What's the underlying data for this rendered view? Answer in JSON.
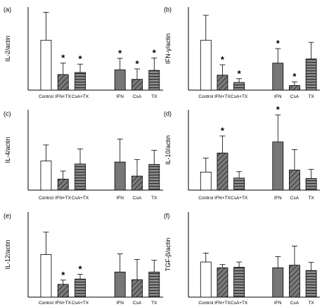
{
  "chart_data": [
    {
      "panel_label": "(a)",
      "type": "bar",
      "ylabel": "IL-2/actin",
      "categories": [
        "Control",
        "IFN+TX",
        "CsA+TX",
        "IFN",
        "CsA",
        "TX"
      ],
      "values": [
        2.4,
        0.75,
        0.85,
        0.98,
        0.52,
        0.95
      ],
      "errors": [
        1.35,
        0.55,
        0.4,
        0.55,
        0.5,
        0.6
      ],
      "significant": [
        false,
        true,
        true,
        true,
        true,
        true
      ],
      "ylim": [
        0,
        4
      ]
    },
    {
      "panel_label": "(b)",
      "type": "bar",
      "ylabel": "IFN-γ/actin",
      "categories": [
        "Control",
        "IFN+TX",
        "CsA+TX",
        "IFN",
        "CsA",
        "TX"
      ],
      "values": [
        2.4,
        0.72,
        0.37,
        1.3,
        0.22,
        1.5
      ],
      "errors": [
        1.2,
        0.5,
        0.18,
        0.7,
        0.18,
        0.8
      ],
      "significant": [
        false,
        true,
        true,
        true,
        true,
        false
      ],
      "ylim": [
        0,
        4
      ]
    },
    {
      "panel_label": "(c)",
      "type": "bar",
      "ylabel": "IL-4/actin",
      "categories": [
        "Control",
        "IFN+TX",
        "CsA+TX",
        "IFN",
        "CsA",
        "TX"
      ],
      "values": [
        1.45,
        0.55,
        1.3,
        1.4,
        0.7,
        1.28
      ],
      "errors": [
        0.8,
        0.4,
        0.75,
        1.15,
        0.82,
        0.7
      ],
      "significant": [
        false,
        false,
        false,
        false,
        false,
        false
      ],
      "ylim": [
        0,
        4
      ]
    },
    {
      "panel_label": "(d)",
      "type": "bar",
      "ylabel": "IL-10/actin",
      "categories": [
        "Control",
        "IFN+TX",
        "CsA+TX",
        "IFN",
        "CsA",
        "TX"
      ],
      "values": [
        0.9,
        1.85,
        0.6,
        2.4,
        1.0,
        0.58
      ],
      "errors": [
        0.7,
        0.85,
        0.32,
        1.35,
        1.02,
        0.45
      ],
      "significant": [
        false,
        true,
        false,
        true,
        false,
        false
      ],
      "ylim": [
        0,
        4
      ]
    },
    {
      "panel_label": "(e)",
      "type": "bar",
      "ylabel": "IL-12/actin",
      "categories": [
        "Control",
        "IFN+TX",
        "CsA+TX",
        "IFN",
        "CsA",
        "TX"
      ],
      "values": [
        2.0,
        0.6,
        0.85,
        1.18,
        0.82,
        1.18
      ],
      "errors": [
        1.05,
        0.2,
        0.22,
        0.85,
        0.95,
        0.55
      ],
      "significant": [
        false,
        true,
        true,
        false,
        false,
        false
      ],
      "ylim": [
        0,
        4
      ]
    },
    {
      "panel_label": "(f)",
      "type": "bar",
      "ylabel": "TGF-β/actin",
      "categories": [
        "Control",
        "IFN+TX",
        "CsA+TX",
        "IFN",
        "CsA",
        "TX"
      ],
      "values": [
        1.65,
        1.38,
        1.4,
        1.38,
        1.5,
        1.25
      ],
      "errors": [
        0.42,
        0.15,
        0.25,
        0.52,
        0.9,
        0.38
      ],
      "significant": [
        false,
        false,
        false,
        false,
        false,
        false
      ],
      "ylim": [
        0,
        4
      ]
    }
  ],
  "styles": {
    "fills": [
      "open",
      "hatched",
      "horizontal-lines",
      "solid-gray",
      "hatched",
      "horizontal-lines"
    ],
    "gray": "#777777",
    "line": "#000000",
    "star": "*"
  }
}
